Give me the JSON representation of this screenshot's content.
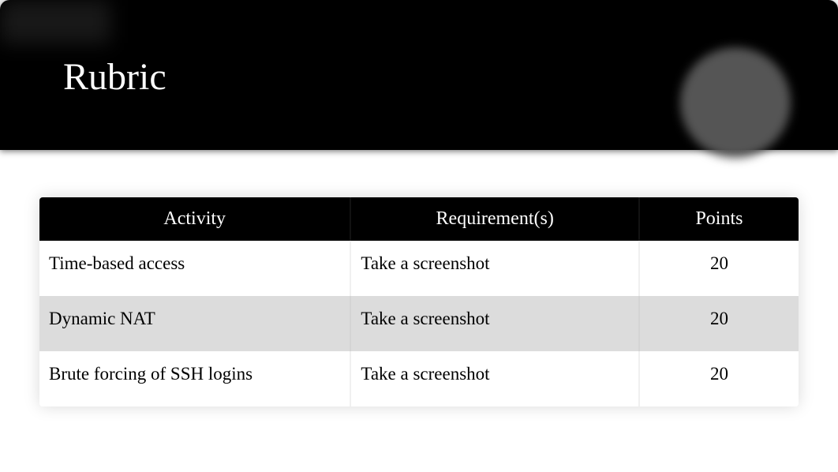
{
  "header": {
    "title": "Rubric"
  },
  "table": {
    "columns": [
      "Activity",
      "Requirement(s)",
      "Points"
    ],
    "rows": [
      {
        "activity": "Time-based access",
        "requirement": "Take a screenshot",
        "points": "20"
      },
      {
        "activity": "Dynamic NAT",
        "requirement": "Take a screenshot",
        "points": "20"
      },
      {
        "activity": "Brute forcing of SSH logins",
        "requirement": "Take a screenshot",
        "points": "20"
      }
    ],
    "header_bg": "#000000",
    "header_fg": "#ffffff",
    "row_odd_bg": "#ffffff",
    "row_even_bg": "#dcdcdc",
    "font_size_header": 24,
    "font_size_cell": 23
  },
  "styling": {
    "page_bg": "#ffffff",
    "header_bg": "#000000",
    "title_color": "#ffffff",
    "title_fontsize": 48,
    "circle_color": "#555555"
  }
}
